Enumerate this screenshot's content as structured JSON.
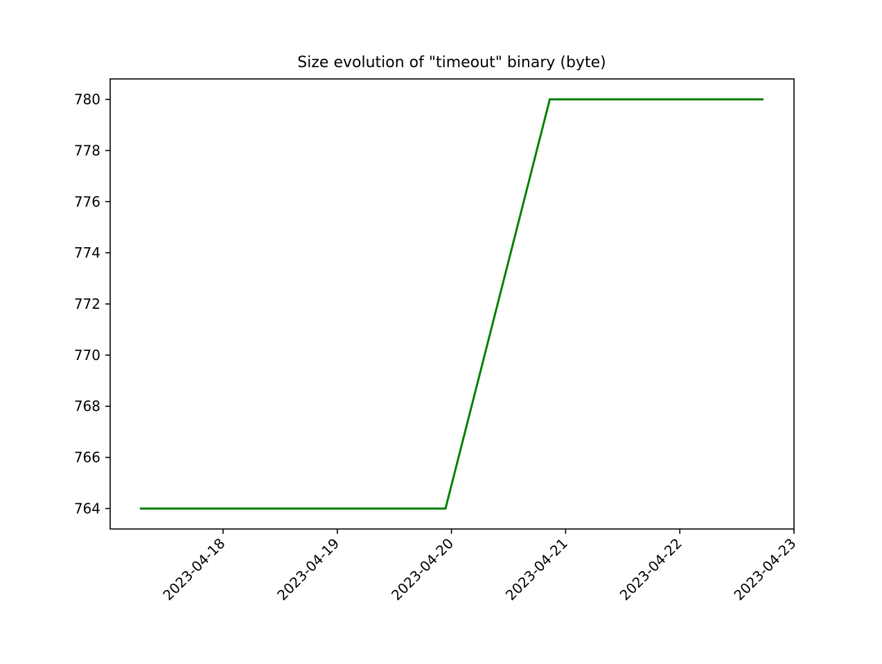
{
  "chart_data": {
    "type": "line",
    "title": "Size evolution of \"timeout\" binary (byte)",
    "xlabel": "",
    "ylabel": "",
    "x_ticks": [
      "2023-04-18",
      "2023-04-19",
      "2023-04-20",
      "2023-04-21",
      "2023-04-22",
      "2023-04-23"
    ],
    "y_ticks": [
      764,
      766,
      768,
      770,
      772,
      774,
      776,
      778,
      780
    ],
    "ylim": [
      763.2,
      780.8
    ],
    "xlim": [
      "2023-04-17T00:00",
      "2023-04-23T00:00"
    ],
    "series": [
      {
        "color": "#008000",
        "points": [
          {
            "x": "2023-04-17T06:30",
            "y": 764
          },
          {
            "x": "2023-04-19T22:45",
            "y": 764
          },
          {
            "x": "2023-04-20T20:40",
            "y": 780
          },
          {
            "x": "2023-04-22T17:35",
            "y": 780
          }
        ]
      }
    ],
    "grid": false,
    "legend": "none"
  },
  "colors": {
    "series": "#008000",
    "axes": "#000000",
    "background": "#ffffff"
  }
}
